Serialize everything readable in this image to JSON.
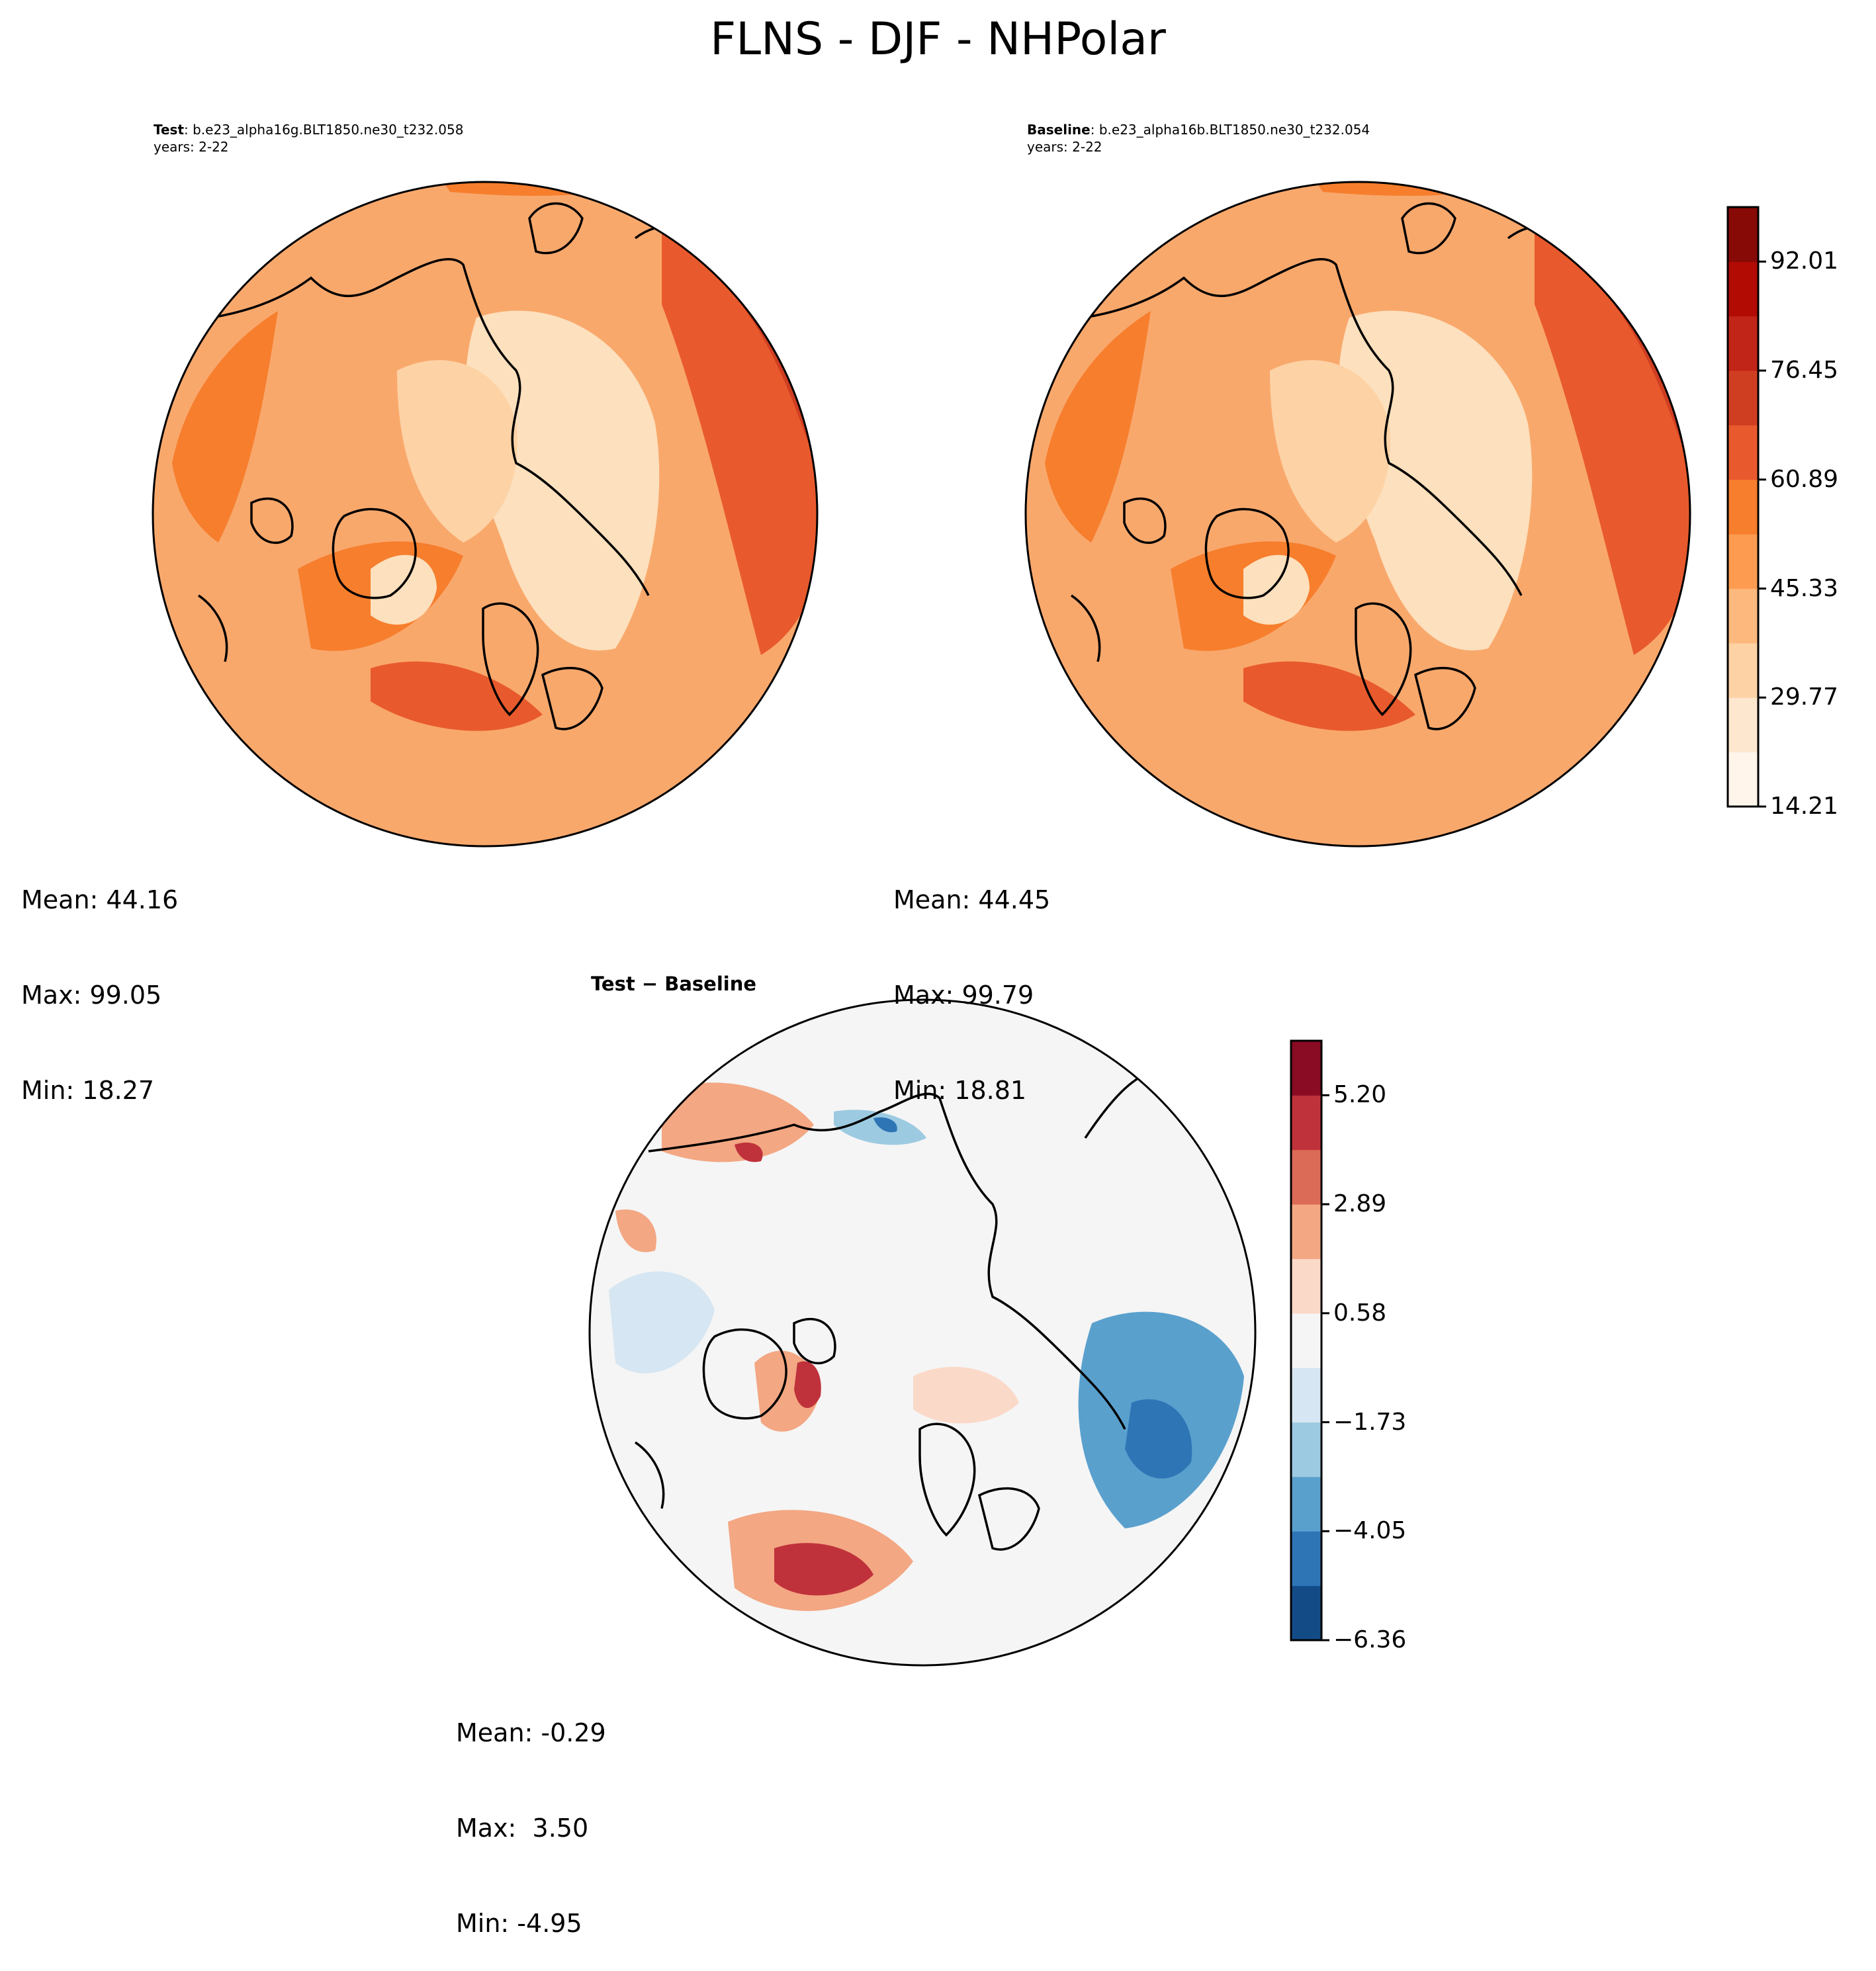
{
  "figure": {
    "title": "FLNS - DJF - NHPolar"
  },
  "panels": {
    "test": {
      "label": "Test",
      "case": ": b.e23_alpha16g.BLT1850.ne30_t232.058",
      "years": "years: 2-22",
      "stats": {
        "mean": "Mean: 44.16",
        "max": "Max: 99.05",
        "min": "Min: 18.27"
      }
    },
    "baseline": {
      "label": "Baseline",
      "case": ": b.e23_alpha16b.BLT1850.ne30_t232.054",
      "years": "years: 2-22",
      "stats": {
        "mean": "Mean: 44.45",
        "max": "Max: 99.79",
        "min": "Min: 18.81"
      }
    },
    "diff": {
      "title": "Test − Baseline",
      "stats": {
        "mean": "Mean: -0.29",
        "max": "Max:  3.50",
        "min": "Min: -4.95"
      }
    }
  },
  "colorbars": {
    "main": {
      "ticks": [
        "14.21",
        "29.77",
        "45.33",
        "60.89",
        "76.45",
        "92.01"
      ],
      "colors": [
        "#fff5eb",
        "#fee7cf",
        "#fdd2a5",
        "#fdb97d",
        "#fd9c51",
        "#f67e2d",
        "#e85a2d",
        "#d03e22",
        "#c12518",
        "#b10b04",
        "#870a06"
      ]
    },
    "diff": {
      "ticks": [
        "−6.36",
        "−4.05",
        "−1.73",
        "0.58",
        "2.89",
        "5.20"
      ],
      "colors": [
        "#134b87",
        "#2e75b6",
        "#5aa0cd",
        "#9ccae1",
        "#d6e6f2",
        "#f5f5f5",
        "#fbd9c8",
        "#f3a783",
        "#db6b57",
        "#c0323b",
        "#8a0b24"
      ]
    }
  },
  "chart_data": [
    {
      "type": "heatmap",
      "title": "Test : b.e23_alpha16g.BLT1850.ne30_t232.058",
      "subtitle": "years: 2-22",
      "projection": "north polar stereographic",
      "color_levels": [
        14.21,
        29.77,
        45.33,
        60.89,
        76.45,
        92.01
      ],
      "stats": {
        "mean": 44.16,
        "max": 99.05,
        "min": 18.27
      }
    },
    {
      "type": "heatmap",
      "title": "Baseline : b.e23_alpha16b.BLT1850.ne30_t232.054",
      "subtitle": "years: 2-22",
      "projection": "north polar stereographic",
      "color_levels": [
        14.21,
        29.77,
        45.33,
        60.89,
        76.45,
        92.01
      ],
      "stats": {
        "mean": 44.45,
        "max": 99.79,
        "min": 18.81
      }
    },
    {
      "type": "heatmap",
      "title": "Test − Baseline",
      "projection": "north polar stereographic",
      "color_levels": [
        -6.36,
        -4.05,
        -1.73,
        0.58,
        2.89,
        5.2
      ],
      "stats": {
        "mean": -0.29,
        "max": 3.5,
        "min": -4.95
      }
    }
  ]
}
